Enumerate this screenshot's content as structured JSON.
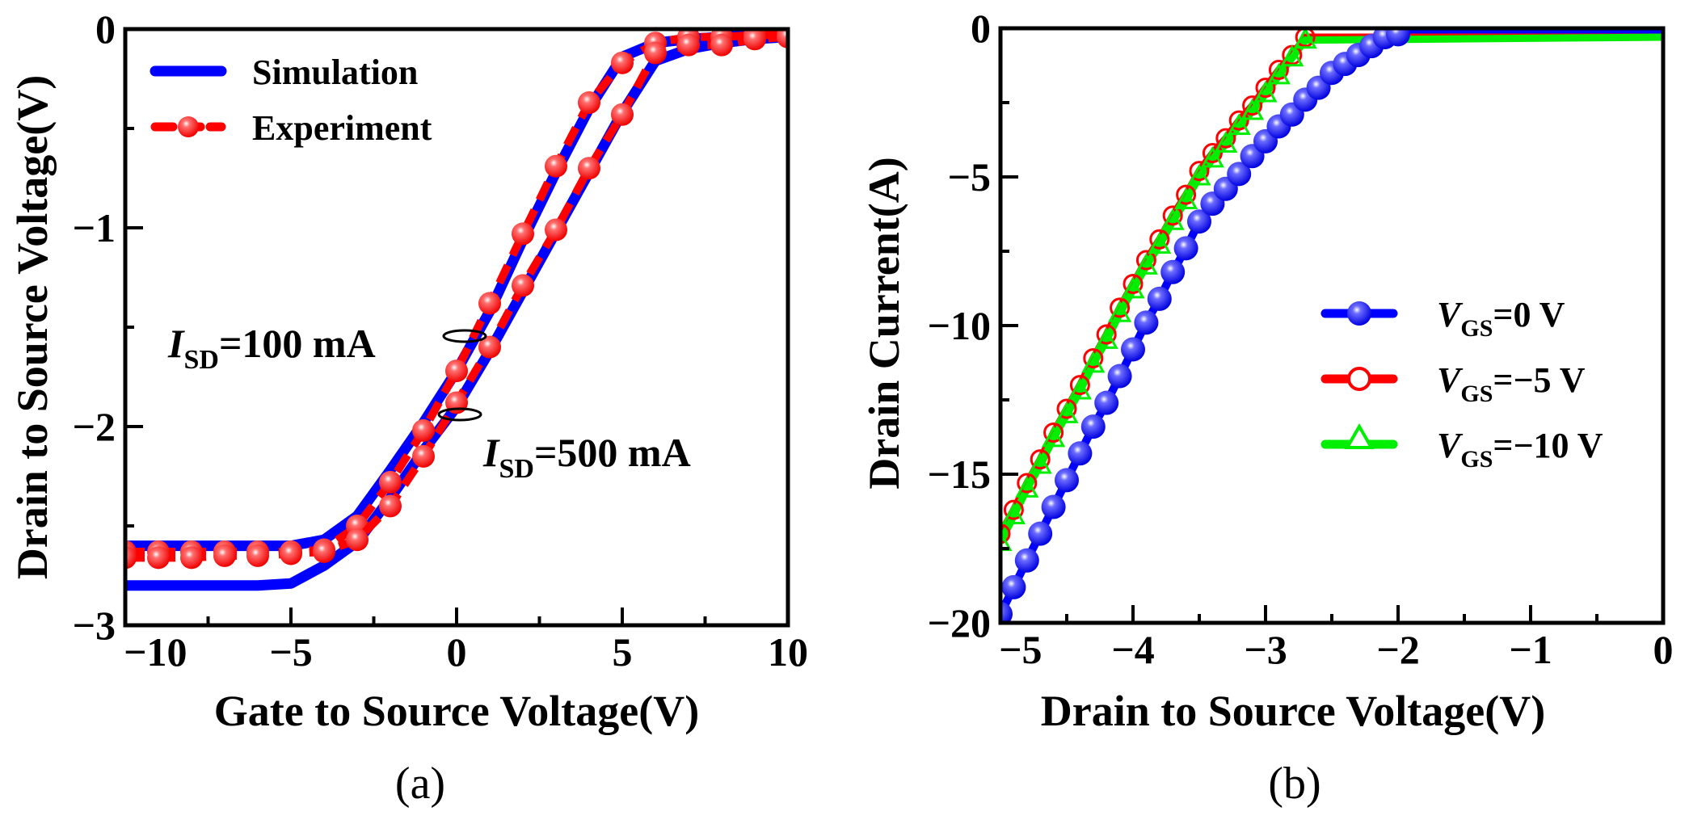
{
  "chart_data": [
    {
      "panel_label": "(a)",
      "type": "line",
      "xlabel": "Gate to Source Voltage(V)",
      "ylabel": "Drain to Source Voltage(V)",
      "xlim": [
        -10,
        10
      ],
      "ylim": [
        -3,
        0
      ],
      "xticks": [
        "-10",
        "-5",
        "0",
        "5",
        "10"
      ],
      "yticks": [
        "0",
        "-1",
        "-2",
        "-3"
      ],
      "grid": false,
      "legend": {
        "placement": "top-left",
        "entries": [
          "Simulation",
          "Experiment"
        ]
      },
      "colors": {
        "Simulation": "#0000ff",
        "Experiment": "#ff0000"
      },
      "annotations": [
        {
          "symbol": "I",
          "sub": "SD",
          "text": "=100 mA"
        },
        {
          "symbol": "I",
          "sub": "SD",
          "text": "=500 mA"
        }
      ],
      "series": [
        {
          "legend": "Simulation",
          "condition": "ISD=100 mA",
          "x": [
            -10,
            -6,
            -5,
            -4,
            -3,
            -2,
            -1,
            0,
            1,
            2,
            3,
            4,
            5,
            6,
            7,
            8,
            9,
            10
          ],
          "y": [
            -2.6,
            -2.6,
            -2.6,
            -2.57,
            -2.45,
            -2.22,
            -1.98,
            -1.72,
            -1.42,
            -1.06,
            -0.72,
            -0.4,
            -0.14,
            -0.07,
            -0.05,
            -0.04,
            -0.03,
            -0.03
          ]
        },
        {
          "legend": "Simulation",
          "condition": "ISD=500 mA",
          "x": [
            -10,
            -6,
            -5,
            -4,
            -3,
            -2,
            -1,
            0,
            1,
            2,
            3,
            4,
            5,
            6,
            7,
            8,
            9,
            10
          ],
          "y": [
            -2.8,
            -2.8,
            -2.79,
            -2.7,
            -2.58,
            -2.36,
            -2.12,
            -1.9,
            -1.62,
            -1.32,
            -1.02,
            -0.72,
            -0.42,
            -0.16,
            -0.1,
            -0.07,
            -0.05,
            -0.04
          ]
        },
        {
          "legend": "Experiment",
          "condition": "ISD=100 mA",
          "x": [
            -10,
            -9,
            -8,
            -7,
            -6,
            -5,
            -4,
            -3,
            -2,
            -1,
            0,
            1,
            2,
            3,
            4,
            5,
            6,
            7,
            8,
            9,
            10
          ],
          "y": [
            -2.63,
            -2.63,
            -2.63,
            -2.63,
            -2.63,
            -2.63,
            -2.62,
            -2.5,
            -2.28,
            -2.02,
            -1.72,
            -1.38,
            -1.03,
            -0.69,
            -0.37,
            -0.17,
            -0.07,
            -0.04,
            -0.04,
            -0.03,
            -0.03
          ]
        },
        {
          "legend": "Experiment",
          "condition": "ISD=500 mA",
          "x": [
            -10,
            -9,
            -8,
            -7,
            -6,
            -5,
            -4,
            -3,
            -2,
            -1,
            0,
            1,
            2,
            3,
            4,
            5,
            6,
            7,
            8,
            9,
            10
          ],
          "y": [
            -2.66,
            -2.66,
            -2.66,
            -2.65,
            -2.65,
            -2.64,
            -2.63,
            -2.57,
            -2.4,
            -2.15,
            -1.88,
            -1.6,
            -1.29,
            -1.01,
            -0.7,
            -0.43,
            -0.12,
            -0.08,
            -0.08,
            -0.05,
            -0.04
          ]
        }
      ]
    },
    {
      "panel_label": "(b)",
      "type": "line",
      "xlabel": "Drain to Source Voltage(V)",
      "ylabel": "Drain Current(A)",
      "xlim": [
        -5,
        0
      ],
      "ylim": [
        -20,
        0
      ],
      "xticks": [
        "-5",
        "-4",
        "-3",
        "-2",
        "-1",
        "0"
      ],
      "yticks": [
        "0",
        "-5",
        "-10",
        "-15",
        "-20"
      ],
      "grid": false,
      "legend": {
        "placement": "right",
        "entries": [
          {
            "symbol": "V",
            "sub": "GS",
            "text": "=0 V"
          },
          {
            "symbol": "V",
            "sub": "GS",
            "text": "=−5 V"
          },
          {
            "symbol": "V",
            "sub": "GS",
            "text": "=−10 V"
          }
        ]
      },
      "colors": [
        "#0000ff",
        "#ff0000",
        "#00ee00"
      ],
      "markers": [
        "filled-sphere",
        "open-circle",
        "open-triangle"
      ],
      "series": [
        {
          "name": "VGS=0 V",
          "x": [
            -5.0,
            -4.9,
            -4.8,
            -4.7,
            -4.6,
            -4.5,
            -4.4,
            -4.3,
            -4.2,
            -4.1,
            -4.0,
            -3.9,
            -3.8,
            -3.7,
            -3.6,
            -3.5,
            -3.4,
            -3.3,
            -3.2,
            -3.1,
            -3.0,
            -2.9,
            -2.8,
            -2.7,
            -2.6,
            -2.5,
            -2.4,
            -2.3,
            -2.2,
            -2.1,
            -2.0,
            0
          ],
          "y": [
            -19.7,
            -18.8,
            -17.9,
            -17.0,
            -16.1,
            -15.2,
            -14.3,
            -13.4,
            -12.6,
            -11.7,
            -10.8,
            -9.9,
            -9.1,
            -8.2,
            -7.4,
            -6.5,
            -5.9,
            -5.4,
            -4.9,
            -4.3,
            -3.8,
            -3.3,
            -2.9,
            -2.4,
            -2.0,
            -1.5,
            -1.2,
            -0.9,
            -0.6,
            -0.3,
            -0.2,
            -0.2
          ]
        },
        {
          "name": "VGS=-5 V",
          "x": [
            -5.0,
            -4.9,
            -4.8,
            -4.7,
            -4.6,
            -4.5,
            -4.4,
            -4.3,
            -4.2,
            -4.1,
            -4.0,
            -3.9,
            -3.8,
            -3.7,
            -3.6,
            -3.5,
            -3.4,
            -3.3,
            -3.2,
            -3.1,
            -3.0,
            -2.9,
            -2.8,
            -2.7,
            0
          ],
          "y": [
            -17.0,
            -16.2,
            -15.3,
            -14.5,
            -13.6,
            -12.8,
            -12.0,
            -11.1,
            -10.3,
            -9.4,
            -8.6,
            -7.8,
            -7.1,
            -6.3,
            -5.6,
            -4.8,
            -4.2,
            -3.7,
            -3.1,
            -2.6,
            -2.0,
            -1.4,
            -0.9,
            -0.3,
            -0.3
          ]
        },
        {
          "name": "VGS=-10 V",
          "x": [
            -5.0,
            -4.9,
            -4.8,
            -4.7,
            -4.6,
            -4.5,
            -4.4,
            -4.3,
            -4.2,
            -4.1,
            -4.0,
            -3.9,
            -3.8,
            -3.7,
            -3.6,
            -3.5,
            -3.4,
            -3.3,
            -3.2,
            -3.1,
            -3.0,
            -2.9,
            -2.8,
            -2.7,
            0
          ],
          "y": [
            -17.3,
            -16.4,
            -15.5,
            -14.7,
            -13.8,
            -13.0,
            -12.2,
            -11.3,
            -10.5,
            -9.6,
            -8.8,
            -8.0,
            -7.3,
            -6.5,
            -5.8,
            -5.0,
            -4.4,
            -3.9,
            -3.3,
            -2.8,
            -2.2,
            -1.6,
            -1.0,
            -0.4,
            -0.3
          ]
        }
      ]
    }
  ]
}
